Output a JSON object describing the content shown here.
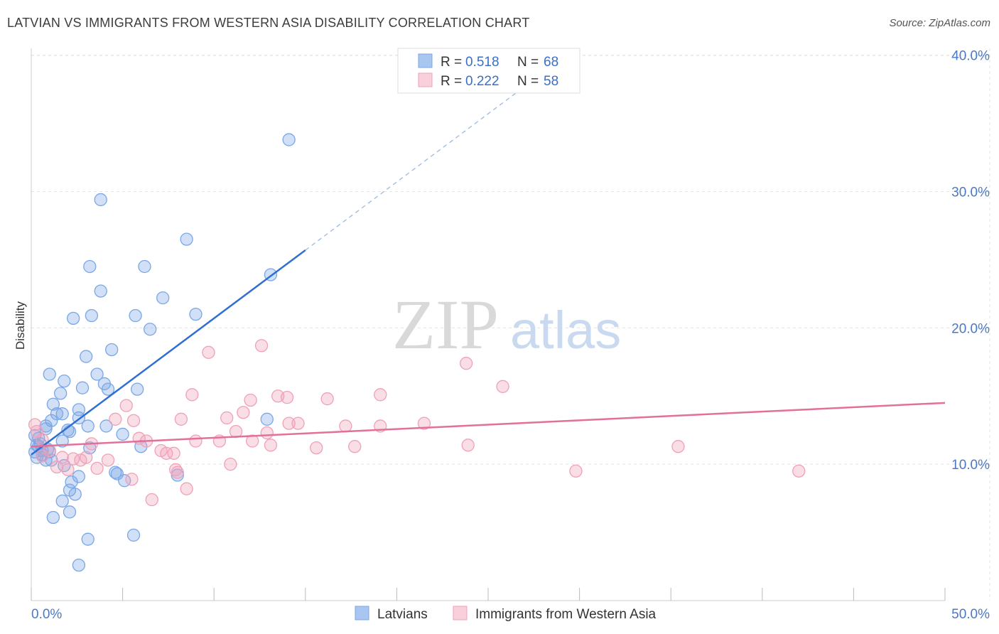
{
  "header": {
    "title": "LATVIAN VS IMMIGRANTS FROM WESTERN ASIA DISABILITY CORRELATION CHART",
    "source": "Source: ZipAtlas.com"
  },
  "watermark": {
    "zip": "ZIP",
    "atlas": "atlas"
  },
  "legend_top": {
    "rows": [
      {
        "r_label": "R =",
        "r_value": "0.518",
        "n_label": "N =",
        "n_value": "68",
        "color": "#a9c6f0"
      },
      {
        "r_label": "R =",
        "r_value": "0.222",
        "n_label": "N =",
        "n_value": "58",
        "color": "#f5b8cb"
      }
    ]
  },
  "legend_bottom": {
    "items": [
      {
        "label": "Latvians",
        "color": "#a9c6f0"
      },
      {
        "label": "Immigrants from Western Asia",
        "color": "#f5b8cb"
      }
    ]
  },
  "chart_data": {
    "type": "scatter",
    "ylabel": "Disability",
    "xlabel": "",
    "xlim": [
      0,
      50
    ],
    "ylim": [
      0,
      40.5
    ],
    "x_tick_labels": {
      "min": "0.0%",
      "max": "50.0%"
    },
    "y_ticks": [
      {
        "value": 10,
        "label": "10.0%"
      },
      {
        "value": 20,
        "label": "20.0%"
      },
      {
        "value": 30,
        "label": "30.0%"
      },
      {
        "value": 40,
        "label": "40.0%"
      }
    ],
    "grid": true,
    "series": [
      {
        "name": "Latvians",
        "color": "#7aa7e6",
        "line_color": "#2f6fd0",
        "trend": {
          "x": [
            0,
            15
          ],
          "y": [
            10.7,
            25.7
          ],
          "dashed_to": [
            27.5,
            38.2
          ]
        },
        "points": [
          [
            14.1,
            33.8
          ],
          [
            3.8,
            29.4
          ],
          [
            8.5,
            26.5
          ],
          [
            3.2,
            24.5
          ],
          [
            6.2,
            24.5
          ],
          [
            13.1,
            23.9
          ],
          [
            3.8,
            22.7
          ],
          [
            7.2,
            22.2
          ],
          [
            2.3,
            20.7
          ],
          [
            3.3,
            20.9
          ],
          [
            5.7,
            20.9
          ],
          [
            9.0,
            21.0
          ],
          [
            6.5,
            19.9
          ],
          [
            4.4,
            18.4
          ],
          [
            3.0,
            17.9
          ],
          [
            1.0,
            16.6
          ],
          [
            3.6,
            16.6
          ],
          [
            1.8,
            16.1
          ],
          [
            4.0,
            15.9
          ],
          [
            2.8,
            15.6
          ],
          [
            4.2,
            15.5
          ],
          [
            5.8,
            15.5
          ],
          [
            1.6,
            15.2
          ],
          [
            1.2,
            14.4
          ],
          [
            2.6,
            14.0
          ],
          [
            1.4,
            13.7
          ],
          [
            1.7,
            13.7
          ],
          [
            2.6,
            13.4
          ],
          [
            1.1,
            13.2
          ],
          [
            12.9,
            13.3
          ],
          [
            0.8,
            12.8
          ],
          [
            3.1,
            12.8
          ],
          [
            4.1,
            12.8
          ],
          [
            0.8,
            12.6
          ],
          [
            2.0,
            12.5
          ],
          [
            2.1,
            12.4
          ],
          [
            0.2,
            12.1
          ],
          [
            0.4,
            11.9
          ],
          [
            5.0,
            12.2
          ],
          [
            1.7,
            11.7
          ],
          [
            0.4,
            11.3
          ],
          [
            0.9,
            11.1
          ],
          [
            3.2,
            11.2
          ],
          [
            6.0,
            11.3
          ],
          [
            0.2,
            10.9
          ],
          [
            0.6,
            11.0
          ],
          [
            0.3,
            10.5
          ],
          [
            0.8,
            10.3
          ],
          [
            1.1,
            10.3
          ],
          [
            1.8,
            9.9
          ],
          [
            4.6,
            9.4
          ],
          [
            4.7,
            9.3
          ],
          [
            8.0,
            9.2
          ],
          [
            5.1,
            8.8
          ],
          [
            2.6,
            9.1
          ],
          [
            2.2,
            8.7
          ],
          [
            2.1,
            8.1
          ],
          [
            2.4,
            7.8
          ],
          [
            1.7,
            7.3
          ],
          [
            2.1,
            6.5
          ],
          [
            1.2,
            6.1
          ],
          [
            5.6,
            4.8
          ],
          [
            3.1,
            4.5
          ],
          [
            2.6,
            2.6
          ],
          [
            0.5,
            11.5
          ],
          [
            1.0,
            10.9
          ],
          [
            0.3,
            11.4
          ],
          [
            0.6,
            10.7
          ]
        ]
      },
      {
        "name": "Immigrants from Western Asia",
        "color": "#f0a0b8",
        "line_color": "#e2709a",
        "trend": {
          "x": [
            0,
            50
          ],
          "y": [
            11.3,
            14.5
          ]
        },
        "points": [
          [
            12.6,
            18.7
          ],
          [
            9.7,
            18.2
          ],
          [
            23.8,
            17.4
          ],
          [
            25.8,
            15.7
          ],
          [
            8.8,
            15.1
          ],
          [
            19.1,
            15.1
          ],
          [
            13.5,
            15.0
          ],
          [
            14.0,
            14.9
          ],
          [
            16.2,
            14.8
          ],
          [
            12.0,
            14.7
          ],
          [
            5.2,
            14.3
          ],
          [
            11.6,
            13.8
          ],
          [
            10.7,
            13.4
          ],
          [
            4.6,
            13.3
          ],
          [
            5.6,
            13.2
          ],
          [
            8.2,
            13.3
          ],
          [
            14.1,
            13.0
          ],
          [
            14.6,
            13.0
          ],
          [
            21.5,
            13.0
          ],
          [
            17.2,
            12.8
          ],
          [
            19.1,
            12.8
          ],
          [
            11.2,
            12.4
          ],
          [
            12.9,
            12.3
          ],
          [
            5.9,
            11.9
          ],
          [
            6.3,
            11.7
          ],
          [
            9.0,
            11.7
          ],
          [
            10.3,
            11.7
          ],
          [
            12.1,
            11.7
          ],
          [
            3.3,
            11.5
          ],
          [
            13.1,
            11.4
          ],
          [
            17.7,
            11.3
          ],
          [
            23.9,
            11.4
          ],
          [
            35.4,
            11.3
          ],
          [
            15.6,
            11.2
          ],
          [
            1.0,
            11.0
          ],
          [
            7.1,
            11.0
          ],
          [
            7.4,
            10.8
          ],
          [
            7.8,
            10.8
          ],
          [
            0.6,
            10.6
          ],
          [
            1.7,
            10.5
          ],
          [
            3.0,
            10.5
          ],
          [
            2.3,
            10.4
          ],
          [
            4.2,
            10.3
          ],
          [
            2.7,
            10.3
          ],
          [
            10.9,
            10.0
          ],
          [
            1.4,
            9.8
          ],
          [
            3.6,
            9.7
          ],
          [
            2.0,
            9.6
          ],
          [
            7.9,
            9.6
          ],
          [
            8.0,
            9.4
          ],
          [
            29.8,
            9.5
          ],
          [
            42.0,
            9.5
          ],
          [
            5.5,
            8.9
          ],
          [
            8.5,
            8.2
          ],
          [
            6.6,
            7.4
          ],
          [
            0.2,
            12.9
          ],
          [
            0.6,
            11.8
          ],
          [
            0.3,
            12.4
          ]
        ]
      }
    ]
  }
}
